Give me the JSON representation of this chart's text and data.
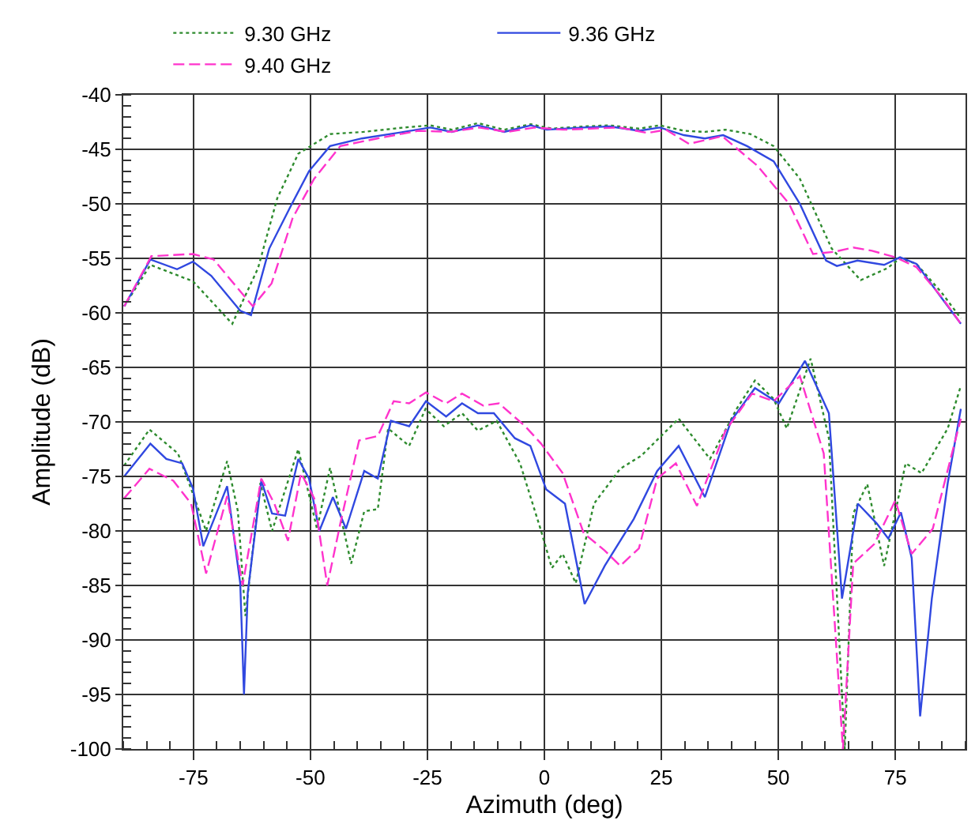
{
  "chart_data": {
    "type": "line",
    "xlabel": "Azimuth (deg)",
    "ylabel": "Amplitude (dB)",
    "xlim": [
      -90,
      90
    ],
    "xticks": [
      -75,
      -50,
      -25,
      0,
      25,
      50,
      75
    ],
    "ylim": [
      -100,
      -40
    ],
    "yticks": [
      -100,
      -95,
      -90,
      -85,
      -80,
      -75,
      -70,
      -65,
      -60,
      -55,
      -50,
      -45,
      -40
    ],
    "grid": true,
    "legend": "top",
    "marker": "none",
    "series": [
      {
        "name": "9.30 GHz",
        "color": "#2e8b2e",
        "line_style": "dotted",
        "x": [
          -89.8,
          -84.2,
          -75.1,
          -66.7,
          -61.2,
          -57.1,
          -52.6,
          -45.8,
          -38.6,
          -30,
          -24.4,
          -19.8,
          -14.2,
          -8.6,
          -2.9,
          1.6,
          8.4,
          13.9,
          20.2,
          24.7,
          29.8,
          34.3,
          38.7,
          44,
          49,
          54.6,
          61.4,
          67.6,
          73.3,
          76,
          79.5,
          85,
          89
        ],
        "values": [
          -59.4,
          -55.6,
          -57.1,
          -61,
          -55.9,
          -49.5,
          -45.4,
          -43.6,
          -43.4,
          -43,
          -42.8,
          -43.2,
          -42.6,
          -43.2,
          -42.7,
          -43.1,
          -42.9,
          -42.8,
          -43.1,
          -42.8,
          -43.3,
          -43.4,
          -43.2,
          -43.6,
          -44.7,
          -47.7,
          -54.1,
          -57,
          -55.9,
          -55,
          -55.5,
          -58.2,
          -60.5
        ]
      },
      {
        "color": "#2e8b2e",
        "line_style": "dotted",
        "x": [
          -89.8,
          -84.4,
          -78.3,
          -75.1,
          -72.3,
          -67.8,
          -65.5,
          -63.9,
          -60.7,
          -58.2,
          -52.6,
          -48.6,
          -45.8,
          -41.3,
          -38.5,
          -35.6,
          -33.4,
          -28.9,
          -25.4,
          -21.5,
          -17.6,
          -14.2,
          -10.2,
          -5.2,
          -0.7,
          1.6,
          3.9,
          6.7,
          10.6,
          16.2,
          20.7,
          28.7,
          35.4,
          41.1,
          45,
          49,
          51.8,
          56.9,
          60.8,
          64.2,
          66,
          69,
          72.6,
          77.2,
          80.6,
          86.2,
          89
        ],
        "values": [
          -74,
          -70.7,
          -72.9,
          -76.6,
          -80,
          -73.6,
          -78.2,
          -87.8,
          -75.6,
          -80,
          -72.5,
          -79.8,
          -74.2,
          -83,
          -78.2,
          -78,
          -70.6,
          -72.2,
          -68.8,
          -70.4,
          -69.2,
          -70.8,
          -69.9,
          -73.8,
          -80,
          -83.4,
          -82.1,
          -84.8,
          -77.5,
          -74.3,
          -73.1,
          -69.7,
          -73.4,
          -68.8,
          -66.2,
          -67.9,
          -70.6,
          -64.2,
          -71.5,
          -100,
          -78.4,
          -75.7,
          -83.2,
          -73.8,
          -74.7,
          -70.6,
          -66.7
        ]
      },
      {
        "name": "9.36 GHz",
        "color": "#3048e0",
        "line_style": "solid",
        "x": [
          -89.8,
          -84.2,
          -78.5,
          -75.1,
          -71.2,
          -65,
          -62.7,
          -58.8,
          -54.2,
          -50.3,
          -45.8,
          -39,
          -30,
          -24.4,
          -19.8,
          -14.2,
          -8.6,
          -2.9,
          0.5,
          8.4,
          13.9,
          20.2,
          24.7,
          29.8,
          34.3,
          38.2,
          43.3,
          49,
          54.6,
          60.2,
          62.5,
          66.9,
          72.6,
          76,
          79.5,
          85,
          89
        ],
        "values": [
          -59.4,
          -55.1,
          -56,
          -55.3,
          -56.6,
          -59.8,
          -60.2,
          -54.1,
          -50.2,
          -47,
          -44.7,
          -44,
          -43.4,
          -43,
          -43.4,
          -42.8,
          -43.4,
          -42.8,
          -43.2,
          -43,
          -42.9,
          -43.3,
          -43,
          -43.7,
          -44,
          -43.7,
          -44.7,
          -46.1,
          -50,
          -55.2,
          -55.7,
          -55.2,
          -55.6,
          -54.9,
          -55.5,
          -58.7,
          -61
        ]
      },
      {
        "color": "#3048e0",
        "line_style": "solid",
        "x": [
          -89.8,
          -84.2,
          -80.8,
          -77.4,
          -75.1,
          -72.9,
          -67.8,
          -65,
          -64.2,
          -63.4,
          -60.5,
          -58.2,
          -55.4,
          -52.6,
          -50.3,
          -48.1,
          -45.2,
          -42.4,
          -38.5,
          -35.6,
          -32.8,
          -28.9,
          -25.3,
          -21,
          -17.6,
          -14.2,
          -10.8,
          -6.3,
          -3,
          0.4,
          4.4,
          8.6,
          12.9,
          19.1,
          24.1,
          28.7,
          34.3,
          39.9,
          45,
          50.1,
          55.7,
          60.8,
          63.6,
          67,
          71,
          73.5,
          76.2,
          78.5,
          80.3,
          82.8,
          86.2,
          89
        ],
        "values": [
          -75,
          -72,
          -73.4,
          -73.8,
          -76.1,
          -81.4,
          -75.9,
          -84.8,
          -95,
          -85.7,
          -75.4,
          -78.4,
          -78.6,
          -73.4,
          -75.2,
          -80,
          -76.9,
          -79.8,
          -74.5,
          -75.2,
          -69.9,
          -70.4,
          -68.1,
          -69.5,
          -68.3,
          -69.2,
          -69.2,
          -71.5,
          -72.2,
          -76.2,
          -77.5,
          -86.7,
          -83.2,
          -78.9,
          -74.5,
          -72.2,
          -76.9,
          -69.9,
          -66.9,
          -68.3,
          -64.4,
          -69.2,
          -86.2,
          -77.5,
          -79.3,
          -80.7,
          -78.3,
          -82.5,
          -97,
          -86.2,
          -75.6,
          -68.8
        ]
      },
      {
        "name": "9.40 GHz",
        "color": "#ff33cc",
        "line_style": "dashed",
        "x": [
          -89.8,
          -84,
          -75.1,
          -70.7,
          -62.3,
          -58.3,
          -53.8,
          -49.2,
          -43.6,
          -35.7,
          -27,
          -20,
          -14,
          -8,
          -2,
          4,
          10,
          16,
          22,
          26,
          30.9,
          38,
          45.5,
          52.3,
          57.4,
          62,
          66,
          70,
          75,
          79.5,
          85,
          89
        ],
        "values": [
          -59.4,
          -54.8,
          -54.6,
          -55.1,
          -59.4,
          -57.3,
          -51.3,
          -47.7,
          -44.7,
          -44,
          -43.3,
          -43.4,
          -43,
          -43.4,
          -43,
          -43.2,
          -43.1,
          -43,
          -43.5,
          -43.2,
          -44.5,
          -43.8,
          -46.5,
          -50,
          -54.6,
          -54.4,
          -54,
          -54.3,
          -54.9,
          -55.8,
          -58.6,
          -61
        ]
      },
      {
        "color": "#ff33cc",
        "line_style": "dashed",
        "x": [
          -89.8,
          -84.4,
          -79.3,
          -75.5,
          -72.3,
          -67.8,
          -64.5,
          -60.5,
          -57.7,
          -54.8,
          -52,
          -49.2,
          -46.4,
          -43.6,
          -39.6,
          -35.6,
          -32.2,
          -28.9,
          -25.3,
          -21,
          -17.6,
          -13.1,
          -9.7,
          -4.1,
          -0.7,
          3.9,
          8.4,
          12.9,
          16.2,
          20.2,
          24.1,
          28.1,
          32.6,
          38.7,
          44.4,
          49,
          54.6,
          59.7,
          63.8,
          66,
          70.5,
          75,
          78.5,
          83,
          89
        ],
        "values": [
          -77,
          -74.3,
          -75.4,
          -77.5,
          -83.9,
          -76.8,
          -85,
          -75.2,
          -77.5,
          -80.9,
          -74.7,
          -77,
          -85,
          -79.3,
          -71.7,
          -71.3,
          -68.1,
          -68.3,
          -67.3,
          -68.3,
          -67.4,
          -68.5,
          -68.3,
          -70.4,
          -72,
          -74.7,
          -80.2,
          -81.8,
          -83.2,
          -81.6,
          -75.2,
          -73.8,
          -77.7,
          -70.8,
          -67.4,
          -68.1,
          -65.8,
          -72.9,
          -100,
          -83,
          -81.2,
          -77.2,
          -82.1,
          -79.8,
          -69.7
        ]
      }
    ]
  }
}
